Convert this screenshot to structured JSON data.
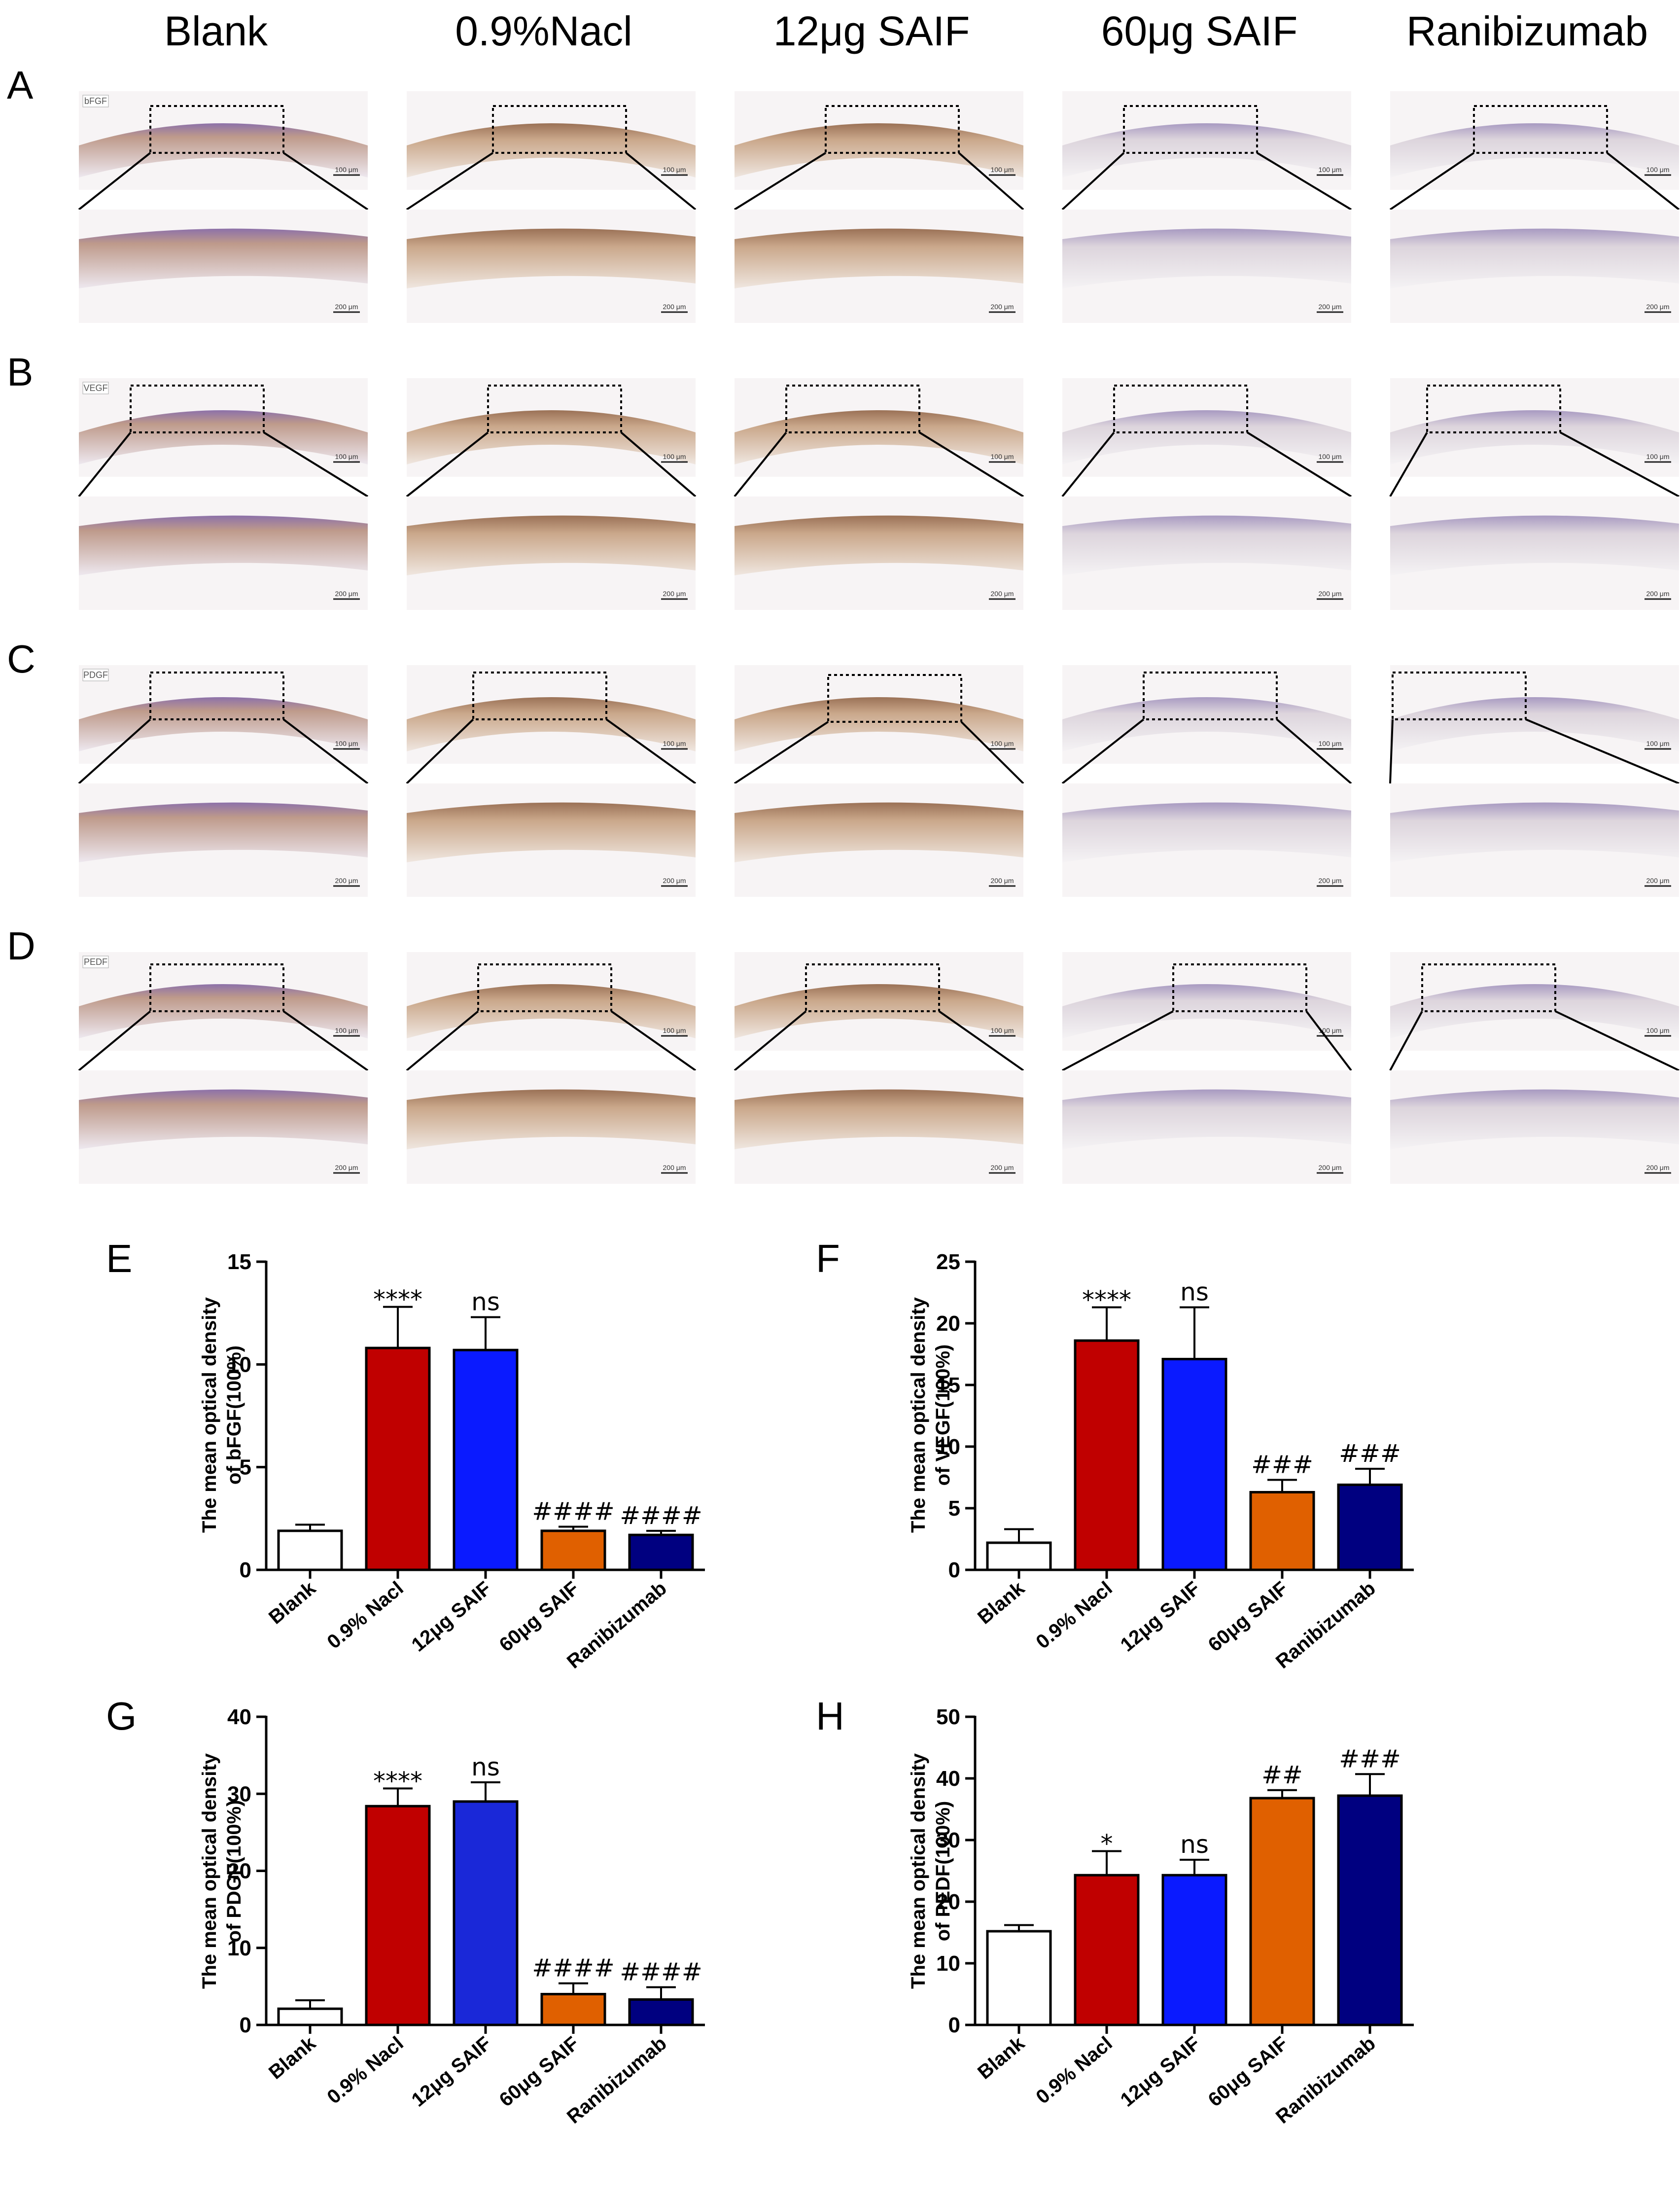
{
  "groups": [
    "Blank",
    "0.9%Nacl",
    "12μg SAIF",
    "60μg SAIF",
    "Ranibizumab"
  ],
  "rows": [
    {
      "letter": "A",
      "stain": "bFGF"
    },
    {
      "letter": "B",
      "stain": "VEGF"
    },
    {
      "letter": "C",
      "stain": "PDGF"
    },
    {
      "letter": "D",
      "stain": "PEDF"
    }
  ],
  "scale_bars": {
    "overview": "100 μm",
    "zoom": "200 μm"
  },
  "chart_data": [
    {
      "panel": "E",
      "type": "bar",
      "ylabel_lines": [
        "The mean optical density",
        "of bFGF(100%)"
      ],
      "categories": [
        "Blank",
        "0.9% Nacl",
        "12μg SAIF",
        "60μg SAIF",
        "Ranibizumab"
      ],
      "values": [
        1.9,
        10.8,
        10.7,
        1.9,
        1.7
      ],
      "errors": [
        0.3,
        2.0,
        1.6,
        0.2,
        0.2
      ],
      "colors": [
        "#ffffff",
        "#c00000",
        "#0a1aff",
        "#e06000",
        "#000080"
      ],
      "significance": [
        "",
        "****",
        "ns",
        "####",
        "####"
      ],
      "ylim": [
        0,
        15
      ],
      "yticks": [
        0,
        5,
        10,
        15
      ]
    },
    {
      "panel": "F",
      "type": "bar",
      "ylabel_lines": [
        "The mean optical density",
        "of VEGF(100%)"
      ],
      "categories": [
        "Blank",
        "0.9% Nacl",
        "12μg SAIF",
        "60μg SAIF",
        "Ranibizumab"
      ],
      "values": [
        2.2,
        18.6,
        17.1,
        6.3,
        6.9
      ],
      "errors": [
        1.1,
        2.7,
        4.2,
        1.0,
        1.3
      ],
      "colors": [
        "#ffffff",
        "#c00000",
        "#0a1aff",
        "#e06000",
        "#000080"
      ],
      "significance": [
        "",
        "****",
        "ns",
        "###",
        "###"
      ],
      "ylim": [
        0,
        25
      ],
      "yticks": [
        0,
        5,
        10,
        15,
        20,
        25
      ]
    },
    {
      "panel": "G",
      "type": "bar",
      "ylabel_lines": [
        "The mean optical density",
        "of PDGF(100%)"
      ],
      "categories": [
        "Blank",
        "0.9% Nacl",
        "12μg SAIF",
        "60μg SAIF",
        "Ranibizumab"
      ],
      "values": [
        2.1,
        28.4,
        29.0,
        4.0,
        3.3
      ],
      "errors": [
        1.1,
        2.3,
        2.5,
        1.4,
        1.6
      ],
      "colors": [
        "#ffffff",
        "#c00000",
        "#1a28d8",
        "#e06000",
        "#000080"
      ],
      "significance": [
        "",
        "****",
        "ns",
        "####",
        "####"
      ],
      "ylim": [
        0,
        40
      ],
      "yticks": [
        0,
        10,
        20,
        30,
        40
      ]
    },
    {
      "panel": "H",
      "type": "bar",
      "ylabel_lines": [
        "The mean optical density",
        "of PEDF(100%)"
      ],
      "categories": [
        "Blank",
        "0.9% Nacl",
        "12μg SAIF",
        "60μg SAIF",
        "Ranibizumab"
      ],
      "values": [
        15.2,
        24.3,
        24.3,
        36.8,
        37.2
      ],
      "errors": [
        1.0,
        3.9,
        2.5,
        1.3,
        3.5
      ],
      "colors": [
        "#ffffff",
        "#c00000",
        "#0a1aff",
        "#e06000",
        "#000080"
      ],
      "significance": [
        "",
        "*",
        "ns",
        "##",
        "###"
      ],
      "ylim": [
        0,
        50
      ],
      "yticks": [
        0,
        10,
        20,
        30,
        40,
        50
      ]
    }
  ]
}
